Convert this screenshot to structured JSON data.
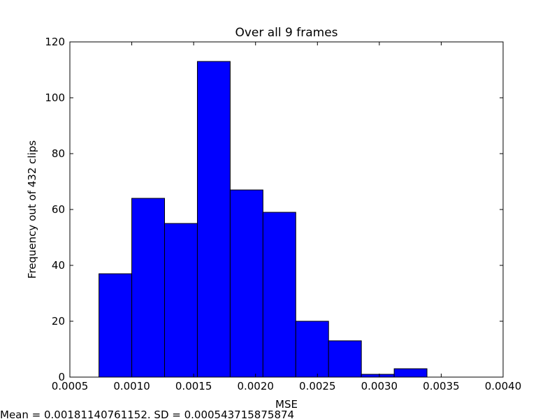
{
  "chart_data": {
    "type": "bar",
    "title": "Over all 9 frames",
    "xlabel": "MSE",
    "ylabel": "Frequency out of 432 clips",
    "xlim": [
      0.0005,
      0.004
    ],
    "ylim": [
      0,
      120
    ],
    "xticks": [
      0.0005,
      0.001,
      0.0015,
      0.002,
      0.0025,
      0.003,
      0.0035,
      0.004
    ],
    "xtick_labels": [
      "0.0005",
      "0.0010",
      "0.0015",
      "0.0020",
      "0.0025",
      "0.0030",
      "0.0035",
      "0.0040"
    ],
    "yticks": [
      0,
      20,
      40,
      60,
      80,
      100,
      120
    ],
    "ytick_labels": [
      "0",
      "20",
      "40",
      "60",
      "80",
      "100",
      "120"
    ],
    "bin_edges": [
      0.000735,
      0.001,
      0.001265,
      0.00153,
      0.001795,
      0.00206,
      0.002325,
      0.00259,
      0.002855,
      0.00312,
      0.003385
    ],
    "values": [
      37,
      64,
      55,
      113,
      67,
      59,
      20,
      13,
      1,
      3
    ],
    "bar_color": "#0000ff",
    "edge_color": "#000000",
    "grid": false,
    "footer": "Mean = 0.00181140761152. SD = 0.000543715875874"
  }
}
